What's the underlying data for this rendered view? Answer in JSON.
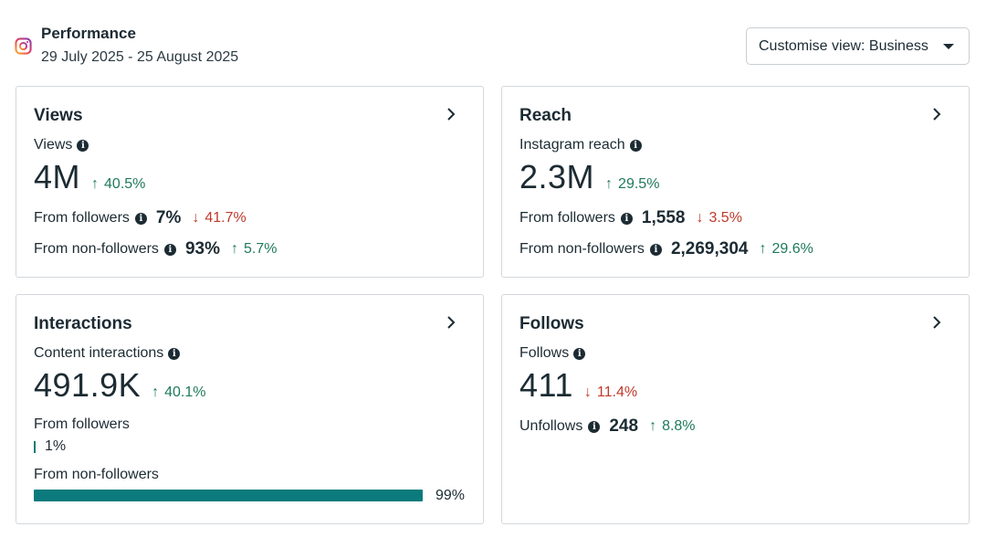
{
  "header": {
    "title": "Performance",
    "date_range": "29 July 2025 - 25 August 2025",
    "customise_label": "Customise view: Business"
  },
  "colors": {
    "positive": "#1f7a5c",
    "negative": "#c0392b",
    "bar": "#0b7a7c"
  },
  "views": {
    "title": "Views",
    "metric_label": "Views",
    "value": "4M",
    "delta": "40.5%",
    "followers_label": "From followers",
    "followers_value": "7%",
    "followers_delta": "41.7%",
    "nonfollowers_label": "From non-followers",
    "nonfollowers_value": "93%",
    "nonfollowers_delta": "5.7%"
  },
  "reach": {
    "title": "Reach",
    "metric_label": "Instagram reach",
    "value": "2.3M",
    "delta": "29.5%",
    "followers_label": "From followers",
    "followers_value": "1,558",
    "followers_delta": "3.5%",
    "nonfollowers_label": "From non-followers",
    "nonfollowers_value": "2,269,304",
    "nonfollowers_delta": "29.6%"
  },
  "interactions": {
    "title": "Interactions",
    "metric_label": "Content interactions",
    "value": "491.9K",
    "delta": "40.1%",
    "followers_label": "From followers",
    "followers_pct": "1%",
    "nonfollowers_label": "From non-followers",
    "nonfollowers_pct": "99%",
    "nonfollowers_fraction": 0.99
  },
  "follows": {
    "title": "Follows",
    "metric_label": "Follows",
    "value": "411",
    "delta": "11.4%",
    "unfollows_label": "Unfollows",
    "unfollows_value": "248",
    "unfollows_delta": "8.8%"
  },
  "icons": {
    "brand": "instagram-icon",
    "info": "info-icon",
    "chevron": "chevron-right-icon",
    "up": "arrow-up-icon",
    "down": "arrow-down-icon",
    "caret": "caret-down-icon"
  }
}
